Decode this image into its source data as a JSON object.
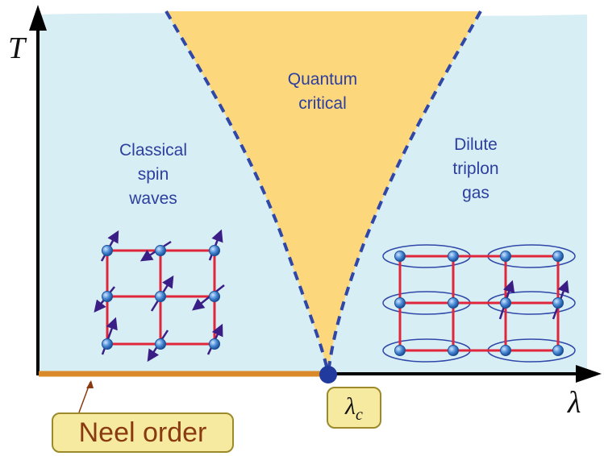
{
  "axes": {
    "y_label": "T",
    "x_label": "λ"
  },
  "regions": {
    "quantum_critical": [
      "Quantum",
      "critical"
    ],
    "classical": [
      "Classical",
      "spin",
      "waves"
    ],
    "dilute": [
      "Dilute",
      "triplon",
      "gas"
    ]
  },
  "labels": {
    "neel_order": "Neel order",
    "lambda_c_symbol": "λ",
    "lambda_c_subscript": "c"
  },
  "colors": {
    "background_phase": "#d8eef5",
    "quantum_critical_fill": "#fcd77c",
    "crossover_line": "#2f47a8",
    "neel_line": "#d9892a",
    "lattice_bond": "#e0263a",
    "spin_site": "#4a8bd6",
    "spin_arrow": "#3b1d86",
    "critical_point": "#213a9e"
  }
}
